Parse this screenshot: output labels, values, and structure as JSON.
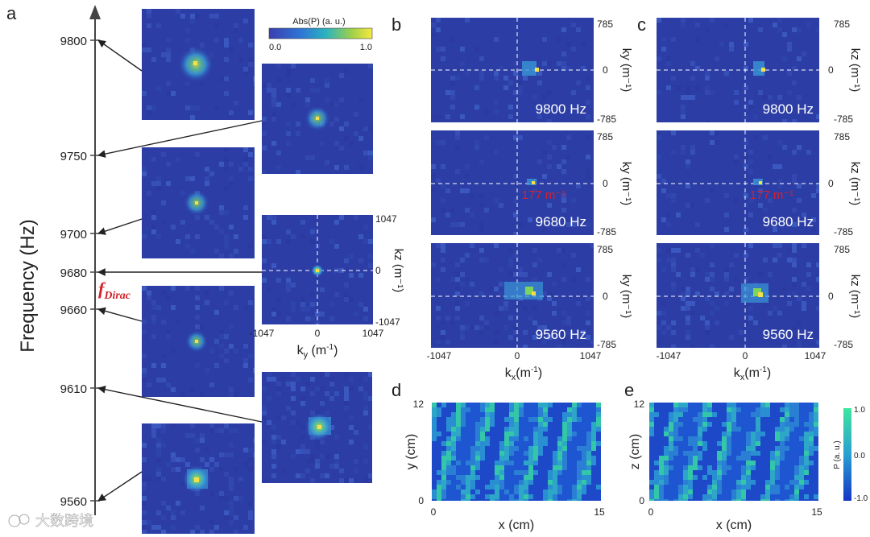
{
  "figure": {
    "panel_labels": {
      "a": "a",
      "b": "b",
      "c": "c",
      "d": "d",
      "e": "e"
    },
    "colors": {
      "axis": "#333333",
      "accent_red": "#d6202a",
      "map_background": "#2c3ea6",
      "spot": "#f6e04a",
      "dashed": "#ffffff"
    },
    "panel_a": {
      "ylabel": "Frequency (Hz)",
      "ticks": [
        "9800",
        "9750",
        "9700",
        "9680",
        "9660",
        "9610",
        "9560"
      ],
      "dirac_symbol": "f",
      "dirac_subscript": "Dirac",
      "colorbar": {
        "title": "Abs(P) (a. u.)",
        "min": "0.0",
        "max": "1.0"
      },
      "center_map": {
        "xlabel_main": "k",
        "xlabel_sub": "y",
        "xlabel_unit": " (m",
        "xlabel_exp": "-1",
        "xlabel_close": ")",
        "ylabel": "kz (m⁻¹)",
        "x_ticks": [
          "-1047",
          "0",
          "1047"
        ],
        "y_ticks": [
          "1047",
          "0",
          "-1047"
        ]
      }
    },
    "panel_b": {
      "ylabel": "ky (m⁻¹)",
      "xlabel_main": "k",
      "xlabel_sub": "x",
      "xlabel_unit": "(m",
      "xlabel_exp": "-1",
      "xlabel_close": ")",
      "x_ticks": [
        "-1047",
        "0",
        "1047"
      ],
      "y_ticks": [
        "785",
        "0",
        "-785"
      ],
      "frequencies": [
        "9800 Hz",
        "9680 Hz",
        "9560 Hz"
      ],
      "annotation": "177 m⁻¹"
    },
    "panel_c": {
      "ylabel": "kz (m⁻¹)",
      "xlabel_main": "k",
      "xlabel_sub": "x",
      "xlabel_unit": "(m",
      "xlabel_exp": "-1",
      "xlabel_close": ")",
      "x_ticks": [
        "-1047",
        "0",
        "1047"
      ],
      "y_ticks": [
        "785",
        "0",
        "-785"
      ],
      "frequencies": [
        "9800 Hz",
        "9680 Hz",
        "9560 Hz"
      ],
      "annotation": "177 m⁻¹"
    },
    "panel_d": {
      "xlabel": "x (cm)",
      "ylabel": "y (cm)",
      "x_ticks": [
        "0",
        "15"
      ],
      "y_ticks": [
        "12",
        "0"
      ]
    },
    "panel_e": {
      "xlabel": "x (cm)",
      "ylabel": "z (cm)",
      "x_ticks": [
        "0",
        "15"
      ],
      "y_ticks": [
        "12",
        "0"
      ],
      "colorbar": {
        "title": "P (a. u.)",
        "ticks": [
          "1.0",
          "0.0",
          "-1.0"
        ]
      }
    },
    "watermark": "大数跨境"
  }
}
